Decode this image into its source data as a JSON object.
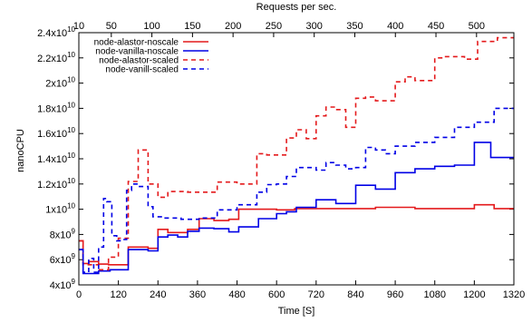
{
  "chart_data": {
    "type": "line",
    "title": "",
    "xlabel": "Time [S]",
    "ylabel": "nanoCPU",
    "top_xlabel": "Requests per sec.",
    "xlim": [
      0,
      1320
    ],
    "ylim": [
      4000000000,
      24000000000
    ],
    "top_xlim": [
      10,
      546
    ],
    "grid": false,
    "legend_position": "top-left",
    "x_ticks": [
      0,
      120,
      240,
      360,
      480,
      600,
      720,
      840,
      960,
      1080,
      1200,
      1320
    ],
    "x_tick_labels": [
      "0",
      "120",
      "240",
      "360",
      "480",
      "600",
      "720",
      "840",
      "960",
      "1080",
      "1200",
      "1320"
    ],
    "top_ticks": [
      10,
      50,
      100,
      150,
      200,
      250,
      300,
      350,
      400,
      450,
      500
    ],
    "top_tick_labels": [
      "10",
      "50",
      "100",
      "150",
      "200",
      "250",
      "300",
      "350",
      "400",
      "450",
      "500"
    ],
    "y_ticks": [
      4000000000,
      6000000000,
      8000000000,
      10000000000,
      12000000000,
      14000000000,
      16000000000,
      18000000000,
      20000000000,
      22000000000,
      24000000000
    ],
    "y_tick_labels": [
      {
        "base": "4x10",
        "exp": "9"
      },
      {
        "base": "6x10",
        "exp": "9"
      },
      {
        "base": "8x10",
        "exp": "9"
      },
      {
        "base": "1x10",
        "exp": "10"
      },
      {
        "base": "1.2x10",
        "exp": "10"
      },
      {
        "base": "1.4x10",
        "exp": "10"
      },
      {
        "base": "1.6x10",
        "exp": "10"
      },
      {
        "base": "1.8x10",
        "exp": "10"
      },
      {
        "base": "2x10",
        "exp": "10"
      },
      {
        "base": "2.2x10",
        "exp": "10"
      },
      {
        "base": "2.4x10",
        "exp": "10"
      }
    ],
    "series": [
      {
        "name": "node-alastor-noscale",
        "color": "#e41a1c",
        "dash": "solid",
        "x": [
          0,
          13,
          13,
          30,
          30,
          60,
          60,
          90,
          90,
          150,
          150,
          210,
          210,
          240,
          240,
          270,
          270,
          330,
          330,
          365,
          365,
          410,
          410,
          455,
          455,
          485,
          485,
          600,
          600,
          655,
          655,
          900,
          900,
          1020,
          1020,
          1200,
          1200,
          1260,
          1260,
          1320
        ],
        "y": [
          7500000000,
          7500000000,
          5700000000,
          5700000000,
          5850000000,
          5850000000,
          5650000000,
          5650000000,
          5600000000,
          5600000000,
          7000000000,
          7000000000,
          6900000000,
          6900000000,
          8400000000,
          8400000000,
          8150000000,
          8150000000,
          8400000000,
          8400000000,
          9250000000,
          9250000000,
          9100000000,
          9100000000,
          9200000000,
          9200000000,
          10000000000,
          10000000000,
          9950000000,
          9950000000,
          10050000000,
          10050000000,
          10150000000,
          10150000000,
          10050000000,
          10050000000,
          10350000000,
          10350000000,
          10050000000,
          10050000000
        ]
      },
      {
        "name": "node-vanilla-noscale",
        "color": "#0000e6",
        "dash": "solid",
        "x": [
          0,
          13,
          13,
          60,
          60,
          95,
          95,
          150,
          150,
          210,
          210,
          240,
          240,
          270,
          270,
          300,
          300,
          330,
          330,
          365,
          365,
          410,
          410,
          455,
          455,
          485,
          485,
          545,
          545,
          600,
          600,
          630,
          630,
          660,
          660,
          720,
          720,
          780,
          780,
          840,
          840,
          900,
          900,
          960,
          960,
          1020,
          1020,
          1080,
          1080,
          1140,
          1140,
          1200,
          1200,
          1250,
          1250,
          1320
        ],
        "y": [
          6800000000,
          6800000000,
          4900000000,
          4900000000,
          5100000000,
          5100000000,
          5200000000,
          5200000000,
          6800000000,
          6800000000,
          6700000000,
          6700000000,
          7800000000,
          7800000000,
          7950000000,
          7950000000,
          7800000000,
          7800000000,
          8250000000,
          8250000000,
          8500000000,
          8500000000,
          8450000000,
          8450000000,
          8200000000,
          8200000000,
          8600000000,
          8600000000,
          9250000000,
          9250000000,
          9650000000,
          9650000000,
          9800000000,
          9800000000,
          10150000000,
          10150000000,
          10750000000,
          10750000000,
          10450000000,
          10450000000,
          11900000000,
          11900000000,
          11600000000,
          11600000000,
          12900000000,
          12900000000,
          13200000000,
          13200000000,
          13400000000,
          13400000000,
          13500000000,
          13500000000,
          15300000000,
          15300000000,
          14100000000,
          14100000000
        ]
      },
      {
        "name": "node-alastor-scaled",
        "color": "#e41a1c",
        "dash": "dashed",
        "x": [
          0,
          13,
          13,
          60,
          60,
          90,
          90,
          120,
          120,
          150,
          150,
          180,
          180,
          210,
          210,
          240,
          240,
          270,
          270,
          330,
          330,
          420,
          420,
          480,
          480,
          540,
          540,
          570,
          570,
          630,
          630,
          660,
          660,
          690,
          690,
          720,
          720,
          750,
          750,
          780,
          780,
          810,
          810,
          840,
          840,
          870,
          870,
          900,
          900,
          960,
          960,
          990,
          990,
          1020,
          1020,
          1080,
          1080,
          1110,
          1110,
          1170,
          1170,
          1210,
          1210,
          1270,
          1270,
          1320
        ],
        "y": [
          7500000000,
          7500000000,
          5600000000,
          5600000000,
          5200000000,
          5200000000,
          6200000000,
          6200000000,
          7700000000,
          7700000000,
          12200000000,
          12200000000,
          14700000000,
          14700000000,
          12000000000,
          12000000000,
          10950000000,
          10950000000,
          11400000000,
          11400000000,
          11350000000,
          11350000000,
          12150000000,
          12150000000,
          12000000000,
          12000000000,
          14400000000,
          14400000000,
          14300000000,
          14300000000,
          15650000000,
          15650000000,
          16300000000,
          16300000000,
          15600000000,
          15600000000,
          17400000000,
          17400000000,
          18100000000,
          18100000000,
          17900000000,
          17900000000,
          16500000000,
          16500000000,
          18800000000,
          18800000000,
          18900000000,
          18900000000,
          18600000000,
          18600000000,
          20100000000,
          20100000000,
          20500000000,
          20500000000,
          20200000000,
          20200000000,
          22000000000,
          22000000000,
          22100000000,
          22100000000,
          21900000000,
          21900000000,
          23300000000,
          23300000000,
          23600000000,
          23600000000
        ]
      },
      {
        "name": "node-vanill-scaled",
        "color": "#0000e6",
        "dash": "dashed",
        "x": [
          0,
          13,
          13,
          30,
          30,
          45,
          45,
          60,
          60,
          75,
          75,
          85,
          85,
          100,
          100,
          115,
          115,
          125,
          125,
          145,
          145,
          160,
          160,
          180,
          180,
          210,
          210,
          225,
          225,
          255,
          255,
          310,
          310,
          365,
          365,
          420,
          420,
          480,
          480,
          540,
          540,
          570,
          570,
          600,
          600,
          630,
          630,
          660,
          660,
          720,
          720,
          750,
          750,
          780,
          780,
          810,
          810,
          840,
          840,
          870,
          870,
          900,
          900,
          930,
          930,
          960,
          960,
          1020,
          1020,
          1080,
          1080,
          1140,
          1140,
          1200,
          1200,
          1260,
          1260,
          1320
        ],
        "y": [
          6800000000,
          6800000000,
          5000000000,
          5000000000,
          6100000000,
          6100000000,
          5000000000,
          5000000000,
          7000000000,
          7000000000,
          10850000000,
          10850000000,
          10600000000,
          10600000000,
          7900000000,
          7900000000,
          7500000000,
          7500000000,
          7600000000,
          7600000000,
          11500000000,
          11500000000,
          12000000000,
          12000000000,
          11800000000,
          11800000000,
          10200000000,
          10200000000,
          9400000000,
          9400000000,
          9300000000,
          9300000000,
          9200000000,
          9200000000,
          9300000000,
          9300000000,
          9950000000,
          9950000000,
          10350000000,
          10350000000,
          11350000000,
          11350000000,
          11950000000,
          11950000000,
          12000000000,
          12000000000,
          12600000000,
          12600000000,
          13300000000,
          13300000000,
          13100000000,
          13100000000,
          13700000000,
          13700000000,
          13500000000,
          13500000000,
          13200000000,
          13200000000,
          13300000000,
          13300000000,
          14900000000,
          14900000000,
          14700000000,
          14700000000,
          14400000000,
          14400000000,
          15000000000,
          15000000000,
          15300000000,
          15300000000,
          15700000000,
          15700000000,
          16500000000,
          16500000000,
          16900000000,
          16900000000,
          18000000000,
          18000000000
        ]
      }
    ]
  }
}
